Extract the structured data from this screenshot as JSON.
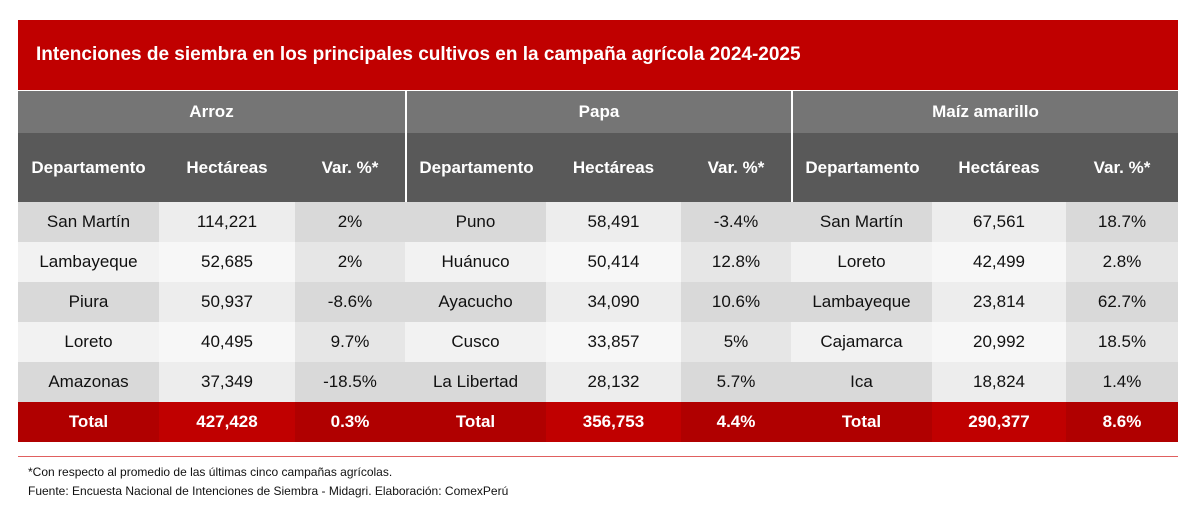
{
  "title": "Intenciones de siembra en los principales cultivos en la campaña agrícola 2024-2025",
  "groups": [
    "Arroz",
    "Papa",
    "Maíz amarillo"
  ],
  "columns": [
    "Departamento",
    "Hectáreas",
    "Var. %*"
  ],
  "rows": [
    [
      "San Martín",
      "114,221",
      "2%",
      "Puno",
      "58,491",
      "-3.4%",
      "San Martín",
      "67,561",
      "18.7%"
    ],
    [
      "Lambayeque",
      "52,685",
      "2%",
      "Huánuco",
      "50,414",
      "12.8%",
      "Loreto",
      "42,499",
      "2.8%"
    ],
    [
      "Piura",
      "50,937",
      "-8.6%",
      "Ayacucho",
      "34,090",
      "10.6%",
      "Lambayeque",
      "23,814",
      "62.7%"
    ],
    [
      "Loreto",
      "40,495",
      "9.7%",
      "Cusco",
      "33,857",
      "5%",
      "Cajamarca",
      "20,992",
      "18.5%"
    ],
    [
      "Amazonas",
      "37,349",
      "-18.5%",
      "La Libertad",
      "28,132",
      "5.7%",
      "Ica",
      "18,824",
      "1.4%"
    ]
  ],
  "total": [
    "Total",
    "427,428",
    "0.3%",
    "Total",
    "356,753",
    "4.4%",
    "Total",
    "290,377",
    "8.6%"
  ],
  "notes": {
    "footnote": "*Con respecto al promedio de las últimas cinco campañas agrícolas.",
    "source": "Fuente: Encuesta Nacional de Intenciones de Siembra - Midagri. Elaboración: ComexPerú"
  },
  "colors": {
    "accent": "#c00000",
    "header_group": "#757575",
    "header_cols": "#595959"
  }
}
